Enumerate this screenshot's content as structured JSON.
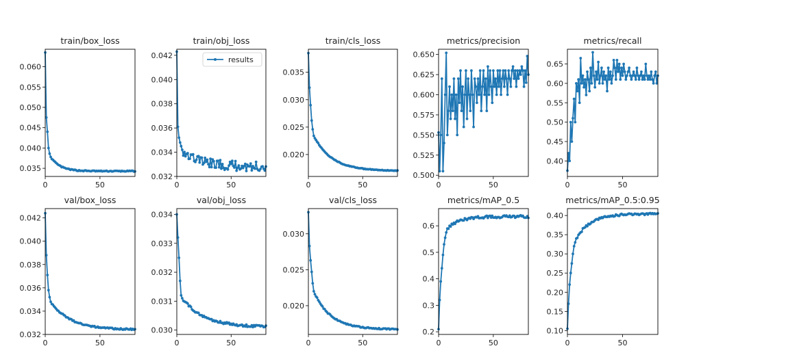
{
  "colors": {
    "series": "#1f77b4",
    "axis": "#000000",
    "text": "#222222",
    "background": "#ffffff"
  },
  "legend": {
    "label": "results",
    "placement": "top-right of train/obj_loss panel"
  },
  "chart_data": [
    {
      "type": "line",
      "title": "train/box_loss",
      "xlim": [
        0,
        82
      ],
      "ylim": [
        0.033,
        0.0643
      ],
      "xticks": [
        0,
        50
      ],
      "xtick_labels": [
        "0",
        "50"
      ],
      "yticks": [
        0.035,
        0.04,
        0.045,
        0.05,
        0.055,
        0.06
      ],
      "ytick_labels": [
        "0.035",
        "0.040",
        "0.045",
        "0.050",
        "0.055",
        "0.060"
      ],
      "series": [
        {
          "name": "results",
          "start": 0.0635,
          "early": [
            0.0635,
            0.0475,
            0.044,
            0.04,
            0.0386,
            0.0378
          ],
          "end": 0.0343,
          "rate": 0.12,
          "noise": 0.00012
        }
      ]
    },
    {
      "type": "line",
      "title": "train/obj_loss",
      "xlim": [
        0,
        82
      ],
      "ylim": [
        0.032,
        0.0425
      ],
      "xticks": [
        0,
        50
      ],
      "xtick_labels": [
        "0",
        "50"
      ],
      "yticks": [
        0.032,
        0.034,
        0.036,
        0.038,
        0.04,
        0.042
      ],
      "ytick_labels": [
        "0.032",
        "0.034",
        "0.036",
        "0.038",
        "0.040",
        "0.042"
      ],
      "legend": true,
      "series": [
        {
          "name": "results",
          "start": 0.0423,
          "early": [
            0.0423,
            0.0361,
            0.0352,
            0.0348,
            0.0345,
            0.0342
          ],
          "end": 0.0328,
          "rate": 0.06,
          "noise": 0.0004
        }
      ]
    },
    {
      "type": "line",
      "title": "train/cls_loss",
      "xlim": [
        0,
        82
      ],
      "ylim": [
        0.016,
        0.0392
      ],
      "xticks": [
        0,
        50
      ],
      "xtick_labels": [
        "0",
        "50"
      ],
      "yticks": [
        0.02,
        0.025,
        0.03,
        0.035
      ],
      "ytick_labels": [
        "0.020",
        "0.025",
        "0.030",
        "0.035"
      ],
      "series": [
        {
          "name": "results",
          "start": 0.0385,
          "early": [
            0.0385,
            0.0322,
            0.029,
            0.0262,
            0.0246,
            0.0234
          ],
          "end": 0.017,
          "rate": 0.06,
          "noise": 6e-05
        }
      ]
    },
    {
      "type": "line",
      "title": "metrics/precision",
      "xlim": [
        0,
        82
      ],
      "ylim": [
        0.4985,
        0.6565
      ],
      "xticks": [
        0,
        50
      ],
      "xtick_labels": [
        "0",
        "50"
      ],
      "yticks": [
        0.5,
        0.525,
        0.55,
        0.575,
        0.6,
        0.625,
        0.65
      ],
      "ytick_labels": [
        "0.500",
        "0.525",
        "0.550",
        "0.575",
        "0.600",
        "0.625",
        "0.650"
      ],
      "series": [
        {
          "name": "results",
          "noisy": true,
          "values": [
            0.553,
            0.505,
            0.55,
            0.62,
            0.505,
            0.54,
            0.6,
            0.652,
            0.55,
            0.58,
            0.61,
            0.57,
            0.6,
            0.58,
            0.62,
            0.57,
            0.6,
            0.55,
            0.62,
            0.59,
            0.63,
            0.58,
            0.61,
            0.56,
            0.6,
            0.63,
            0.57,
            0.62,
            0.6,
            0.58,
            0.63,
            0.6,
            0.56,
            0.62,
            0.61,
            0.59,
            0.62,
            0.6,
            0.63,
            0.58,
            0.61,
            0.63,
            0.6,
            0.62,
            0.58,
            0.635,
            0.6,
            0.63,
            0.61,
            0.59,
            0.63,
            0.61,
            0.62,
            0.6,
            0.63,
            0.61,
            0.63,
            0.6,
            0.62,
            0.63,
            0.61,
            0.63,
            0.62,
            0.6,
            0.63,
            0.62,
            0.61,
            0.63,
            0.635,
            0.62,
            0.63,
            0.61,
            0.63,
            0.62,
            0.63,
            0.625,
            0.635,
            0.63,
            0.61,
            0.63,
            0.615,
            0.648,
            0.625
          ]
        }
      ]
    },
    {
      "type": "line",
      "title": "metrics/recall",
      "xlim": [
        0,
        82
      ],
      "ylim": [
        0.36,
        0.688
      ],
      "xticks": [
        0,
        50
      ],
      "xtick_labels": [
        "0",
        "50"
      ],
      "yticks": [
        0.4,
        0.45,
        0.5,
        0.55,
        0.6,
        0.65
      ],
      "ytick_labels": [
        "0.40",
        "0.45",
        "0.50",
        "0.55",
        "0.60",
        "0.65"
      ],
      "series": [
        {
          "name": "results",
          "noisy": true,
          "values": [
            0.375,
            0.42,
            0.4,
            0.5,
            0.45,
            0.51,
            0.56,
            0.5,
            0.6,
            0.58,
            0.61,
            0.55,
            0.665,
            0.6,
            0.62,
            0.59,
            0.61,
            0.57,
            0.63,
            0.61,
            0.58,
            0.64,
            0.6,
            0.68,
            0.62,
            0.59,
            0.63,
            0.61,
            0.655,
            0.6,
            0.62,
            0.64,
            0.6,
            0.63,
            0.61,
            0.62,
            0.58,
            0.64,
            0.61,
            0.63,
            0.6,
            0.62,
            0.66,
            0.64,
            0.61,
            0.66,
            0.63,
            0.65,
            0.61,
            0.64,
            0.62,
            0.65,
            0.63,
            0.61,
            0.62,
            0.63,
            0.64,
            0.62,
            0.61,
            0.62,
            0.63,
            0.62,
            0.61,
            0.64,
            0.62,
            0.61,
            0.62,
            0.63,
            0.61,
            0.62,
            0.61,
            0.65,
            0.62,
            0.61,
            0.62,
            0.61,
            0.63,
            0.61,
            0.6,
            0.62,
            0.63,
            0.6,
            0.62
          ]
        }
      ]
    },
    {
      "type": "line",
      "title": "val/box_loss",
      "xlim": [
        0,
        82
      ],
      "ylim": [
        0.032,
        0.0428
      ],
      "xticks": [
        0,
        50
      ],
      "xtick_labels": [
        "0",
        "50"
      ],
      "yticks": [
        0.032,
        0.034,
        0.036,
        0.038,
        0.04,
        0.042
      ],
      "ytick_labels": [
        "0.032",
        "0.034",
        "0.036",
        "0.038",
        "0.040",
        "0.042"
      ],
      "series": [
        {
          "name": "results",
          "start": 0.0424,
          "early": [
            0.0424,
            0.0388,
            0.0371,
            0.0358,
            0.0352,
            0.0348
          ],
          "end": 0.0324,
          "rate": 0.055,
          "noise": 6e-05
        }
      ]
    },
    {
      "type": "line",
      "title": "val/obj_loss",
      "xlim": [
        0,
        82
      ],
      "ylim": [
        0.02985,
        0.0342
      ],
      "xticks": [
        0,
        50
      ],
      "xtick_labels": [
        "0",
        "50"
      ],
      "yticks": [
        0.03,
        0.031,
        0.032,
        0.033,
        0.034
      ],
      "ytick_labels": [
        "0.030",
        "0.031",
        "0.032",
        "0.033",
        "0.034"
      ],
      "series": [
        {
          "name": "results",
          "start": 0.034,
          "early": [
            0.034,
            0.0332,
            0.0325,
            0.0317,
            0.0312,
            0.0311
          ],
          "end": 0.0301,
          "rate": 0.05,
          "noise": 4e-05
        }
      ]
    },
    {
      "type": "line",
      "title": "val/cls_loss",
      "xlim": [
        0,
        82
      ],
      "ylim": [
        0.016,
        0.0335
      ],
      "xticks": [
        0,
        50
      ],
      "xtick_labels": [
        "0",
        "50"
      ],
      "yticks": [
        0.02,
        0.025,
        0.03
      ],
      "ytick_labels": [
        "0.020",
        "0.025",
        "0.030"
      ],
      "series": [
        {
          "name": "results",
          "start": 0.033,
          "early": [
            0.033,
            0.0283,
            0.0263,
            0.0247,
            0.0231,
            0.022
          ],
          "end": 0.0167,
          "rate": 0.065,
          "noise": 8e-05
        }
      ]
    },
    {
      "type": "line",
      "title": "metrics/mAP_0.5",
      "xlim": [
        0,
        82
      ],
      "ylim": [
        0.19,
        0.665
      ],
      "xticks": [
        0,
        50
      ],
      "xtick_labels": [
        "0",
        "50"
      ],
      "yticks": [
        0.2,
        0.3,
        0.4,
        0.5,
        0.6
      ],
      "ytick_labels": [
        "0.2",
        "0.3",
        "0.4",
        "0.5",
        "0.6"
      ],
      "series": [
        {
          "name": "results",
          "rising": true,
          "start": 0.21,
          "early": [
            0.21,
            0.32,
            0.39,
            0.44,
            0.49,
            0.53,
            0.555,
            0.575,
            0.59
          ],
          "end": 0.635,
          "rate": 0.09,
          "noise": 0.005
        }
      ]
    },
    {
      "type": "line",
      "title": "metrics/mAP_0.5:0.95",
      "xlim": [
        0,
        82
      ],
      "ylim": [
        0.09,
        0.418
      ],
      "xticks": [
        0,
        50
      ],
      "xtick_labels": [
        "0",
        "50"
      ],
      "yticks": [
        0.1,
        0.15,
        0.2,
        0.25,
        0.3,
        0.35,
        0.4
      ],
      "ytick_labels": [
        "0.10",
        "0.15",
        "0.20",
        "0.25",
        "0.30",
        "0.35",
        "0.40"
      ],
      "series": [
        {
          "name": "results",
          "rising": true,
          "start": 0.105,
          "early": [
            0.105,
            0.17,
            0.22,
            0.25,
            0.275,
            0.3,
            0.32,
            0.33,
            0.34
          ],
          "end": 0.405,
          "rate": 0.075,
          "noise": 0.003
        }
      ]
    }
  ]
}
